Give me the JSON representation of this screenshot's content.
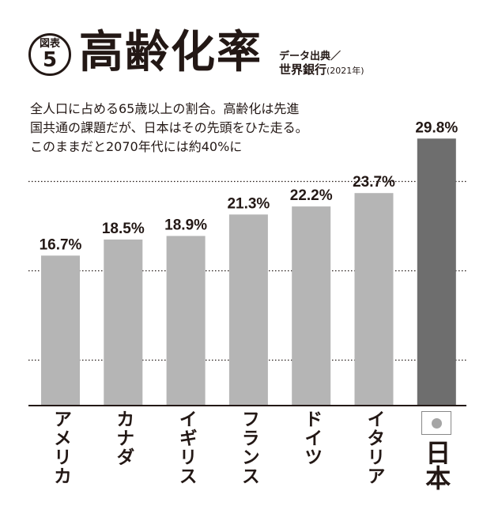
{
  "header": {
    "badge_top": "図表",
    "badge_num": "5",
    "title": "高齢化率",
    "source_line1": "データ出典／",
    "source_line2": "世界銀行",
    "source_year": "(2021年)"
  },
  "description": [
    "全人口に占める65歳以上の割合。高齢化は先進",
    "国共通の課題だが、日本はその先頭をひた走る。",
    "このままだと2070年代には約40%に"
  ],
  "chart_data": {
    "type": "bar",
    "categories": [
      "アメリカ",
      "カナダ",
      "イギリス",
      "フランス",
      "ドイツ",
      "イタリア",
      "日本"
    ],
    "values": [
      16.7,
      18.5,
      18.9,
      21.3,
      22.2,
      23.7,
      29.8
    ],
    "data_labels": [
      "16.7%",
      "18.5%",
      "18.9%",
      "21.3%",
      "22.2%",
      "23.7%",
      "29.8%"
    ],
    "ylim": [
      0,
      30
    ],
    "gridlines": [
      5,
      15,
      25
    ],
    "grid": "dotted horizontal",
    "highlight": "日本",
    "colors": {
      "bar": "#b5b5b5",
      "highlight": "#6e6e6e",
      "text": "#231815"
    }
  }
}
